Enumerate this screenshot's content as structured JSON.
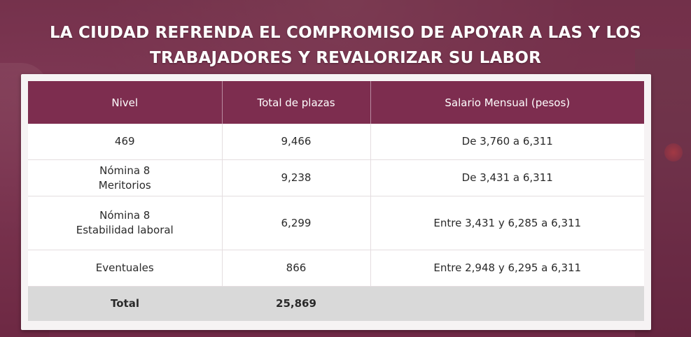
{
  "headline": {
    "line1": "LA CIUDAD REFRENDA EL COMPROMISO DE APOYAR A LAS Y LOS",
    "line2": "TRABAJADORES Y REVALORIZAR SU LABOR"
  },
  "table": {
    "headers": [
      "Nivel",
      "Total de plazas",
      "Salario Mensual (pesos)"
    ],
    "rows": [
      {
        "nivel": [
          "469"
        ],
        "plazas": "9,466",
        "salario": "De 3,760 a 6,311"
      },
      {
        "nivel": [
          "Nómina 8",
          "Meritorios"
        ],
        "plazas": "9,238",
        "salario": "De 3,431 a 6,311"
      },
      {
        "nivel": [
          "Nómina 8",
          "Estabilidad laboral"
        ],
        "plazas": "6,299",
        "salario": "Entre 3,431 y 6,285 a 6,311"
      },
      {
        "nivel": [
          "Eventuales"
        ],
        "plazas": "866",
        "salario": "Entre 2,948 y 6,295 a 6,311"
      }
    ],
    "total": {
      "label": "Total",
      "plazas": "25,869",
      "salario": ""
    }
  },
  "colors": {
    "header_bg": "#7d2d4f",
    "total_bg": "#d9d9d9",
    "background_tint": "#76284a"
  }
}
